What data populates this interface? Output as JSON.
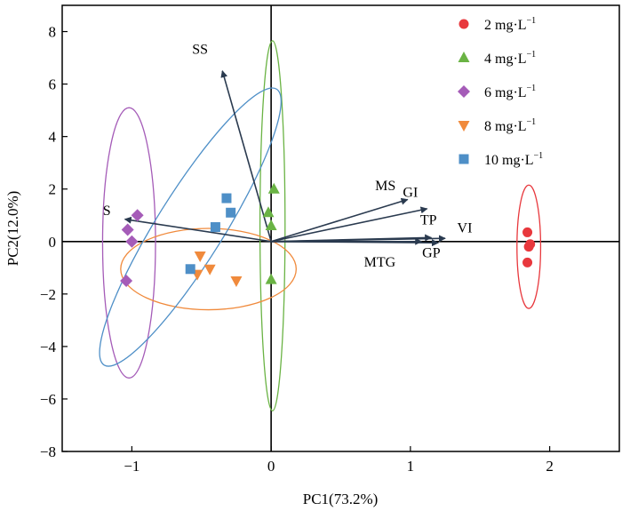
{
  "chart_data": {
    "type": "scatter",
    "title": "",
    "xlabel": "PC1(73.2%)",
    "ylabel": "PC2(12.0%)",
    "xlim": [
      -1.5,
      2.5
    ],
    "ylim": [
      -8,
      9
    ],
    "xticks": [
      {
        "v": -1,
        "label": "−1"
      },
      {
        "v": 0,
        "label": "0"
      },
      {
        "v": 1,
        "label": "1"
      },
      {
        "v": 2,
        "label": "2"
      }
    ],
    "yticks": [
      {
        "v": 8,
        "label": "8"
      },
      {
        "v": 6,
        "label": "6"
      },
      {
        "v": 4,
        "label": "4"
      },
      {
        "v": 2,
        "label": "2"
      },
      {
        "v": 0,
        "label": "0"
      },
      {
        "v": -2,
        "label": "−2"
      },
      {
        "v": -4,
        "label": "−4"
      },
      {
        "v": -6,
        "label": "−6"
      },
      {
        "v": -8,
        "label": "−8"
      }
    ],
    "series": [
      {
        "name": "2 mg·L",
        "sup": "−1",
        "marker": "circle",
        "color": "#e8383d",
        "points": [
          [
            1.84,
            0.35
          ],
          [
            1.86,
            -0.1
          ],
          [
            1.85,
            -0.2
          ],
          [
            1.84,
            -0.8
          ]
        ],
        "ellipse": {
          "cx": 1.85,
          "cy": -0.2,
          "rx": 0.085,
          "ry": 2.35,
          "angle": 0
        }
      },
      {
        "name": "4 mg·L",
        "sup": "−1",
        "marker": "triangle-up",
        "color": "#6ab344",
        "points": [
          [
            0.02,
            2.0
          ],
          [
            -0.02,
            1.1
          ],
          [
            0.0,
            0.6
          ],
          [
            0.0,
            -1.45
          ]
        ],
        "ellipse": {
          "cx": 0.01,
          "cy": 0.6,
          "rx": 0.09,
          "ry": 7.05,
          "angle": 0
        }
      },
      {
        "name": "6 mg·L",
        "sup": "−1",
        "marker": "diamond",
        "color": "#a55cb8",
        "points": [
          [
            -0.96,
            1.0
          ],
          [
            -1.03,
            0.45
          ],
          [
            -1.0,
            0.0
          ],
          [
            -1.04,
            -1.5
          ]
        ],
        "ellipse": {
          "cx": -1.02,
          "cy": -0.05,
          "rx": 0.19,
          "ry": 5.15,
          "angle": 0
        }
      },
      {
        "name": "8 mg·L",
        "sup": "−1",
        "marker": "triangle-down",
        "color": "#f08a3c",
        "points": [
          [
            -0.51,
            -0.55
          ],
          [
            -0.53,
            -1.25
          ],
          [
            -0.44,
            -1.05
          ],
          [
            -0.25,
            -1.5
          ]
        ],
        "ellipse": {
          "cx": -0.45,
          "cy": -1.05,
          "rx": 0.63,
          "ry": 1.55,
          "angle": 0
        }
      },
      {
        "name": "10 mg·L",
        "sup": "−1",
        "marker": "square",
        "color": "#4e8fc7",
        "points": [
          [
            -0.32,
            1.65
          ],
          [
            -0.29,
            1.1
          ],
          [
            -0.4,
            0.55
          ],
          [
            -0.58,
            -1.05
          ]
        ],
        "ellipse": {
          "cx": -0.58,
          "cy": 0.55,
          "rx": 0.24,
          "ry": 6.2,
          "angle": 32
        }
      }
    ],
    "loadings": [
      {
        "name": "SS",
        "x": -0.35,
        "y": 6.5,
        "lx": -0.51,
        "ly": 7.15
      },
      {
        "name": "S",
        "x": -1.05,
        "y": 0.85,
        "lx": -1.18,
        "ly": 1.0
      },
      {
        "name": "MS",
        "x": 0.98,
        "y": 1.6,
        "lx": 0.82,
        "ly": 1.95
      },
      {
        "name": "GI",
        "x": 1.12,
        "y": 1.25,
        "lx": 1.0,
        "ly": 1.7
      },
      {
        "name": "TP",
        "x": 1.15,
        "y": 0.15,
        "lx": 1.13,
        "ly": 0.65
      },
      {
        "name": "VI",
        "x": 1.25,
        "y": 0.12,
        "lx": 1.39,
        "ly": 0.35
      },
      {
        "name": "GP",
        "x": 1.2,
        "y": -0.05,
        "lx": 1.15,
        "ly": -0.6
      },
      {
        "name": "MTG",
        "x": 1.08,
        "y": 0.0,
        "lx": 0.78,
        "ly": -0.95
      }
    ],
    "legend_position": "top-right"
  }
}
